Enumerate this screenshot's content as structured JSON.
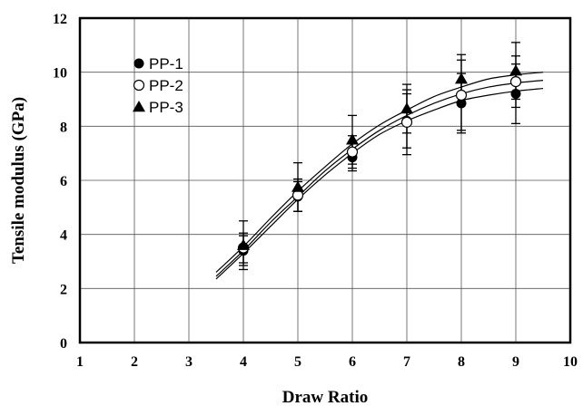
{
  "chart_data": {
    "type": "scatter",
    "xlabel": "Draw Ratio",
    "ylabel": "Tensile modulus (GPa)",
    "xlim": [
      1,
      10
    ],
    "ylim": [
      0,
      12
    ],
    "x_ticks": [
      1,
      2,
      3,
      4,
      5,
      6,
      7,
      8,
      9,
      10
    ],
    "y_ticks": [
      0,
      2,
      4,
      6,
      8,
      10,
      12
    ],
    "grid": true,
    "legend_position": "top-left",
    "error_bars": true,
    "fit_lines": true,
    "series": [
      {
        "name": "PP-1",
        "marker": "filled-circle",
        "x": [
          4,
          5,
          6,
          7,
          8,
          9
        ],
        "y": [
          3.4,
          5.4,
          6.85,
          8.2,
          8.85,
          9.2
        ],
        "error": [
          0.55,
          0.55,
          0.5,
          1.0,
          1.1,
          1.1
        ],
        "fit": [
          [
            3.5,
            2.35
          ],
          [
            4,
            3.3
          ],
          [
            4.5,
            4.3
          ],
          [
            5,
            5.3
          ],
          [
            5.5,
            6.2
          ],
          [
            6,
            7.0
          ],
          [
            6.5,
            7.7
          ],
          [
            7,
            8.2
          ],
          [
            7.5,
            8.6
          ],
          [
            8,
            8.95
          ],
          [
            8.5,
            9.15
          ],
          [
            9,
            9.3
          ],
          [
            9.5,
            9.4
          ]
        ]
      },
      {
        "name": "PP-2",
        "marker": "open-circle",
        "x": [
          4,
          5,
          6,
          7,
          8,
          9
        ],
        "y": [
          3.5,
          5.45,
          7.05,
          8.15,
          9.15,
          9.65
        ],
        "error": [
          0.55,
          0.6,
          0.6,
          1.2,
          1.3,
          0.95
        ],
        "fit": [
          [
            3.5,
            2.45
          ],
          [
            4,
            3.4
          ],
          [
            4.5,
            4.45
          ],
          [
            5,
            5.4
          ],
          [
            5.5,
            6.35
          ],
          [
            6,
            7.15
          ],
          [
            6.5,
            7.85
          ],
          [
            7,
            8.4
          ],
          [
            7.5,
            8.85
          ],
          [
            8,
            9.2
          ],
          [
            8.5,
            9.45
          ],
          [
            9,
            9.6
          ],
          [
            9.5,
            9.7
          ]
        ]
      },
      {
        "name": "PP-3",
        "marker": "filled-triangle",
        "x": [
          4,
          5,
          6,
          7,
          8,
          9
        ],
        "y": [
          3.6,
          5.75,
          7.5,
          8.65,
          9.75,
          10.05
        ],
        "error": [
          0.9,
          0.9,
          0.9,
          0.9,
          0.9,
          1.05
        ],
        "fit": [
          [
            3.5,
            2.6
          ],
          [
            4,
            3.55
          ],
          [
            4.5,
            4.6
          ],
          [
            5,
            5.6
          ],
          [
            5.5,
            6.5
          ],
          [
            6,
            7.35
          ],
          [
            6.5,
            8.05
          ],
          [
            7,
            8.6
          ],
          [
            7.5,
            9.1
          ],
          [
            8,
            9.45
          ],
          [
            8.5,
            9.75
          ],
          [
            9,
            9.9
          ],
          [
            9.5,
            10.0
          ]
        ]
      }
    ]
  }
}
